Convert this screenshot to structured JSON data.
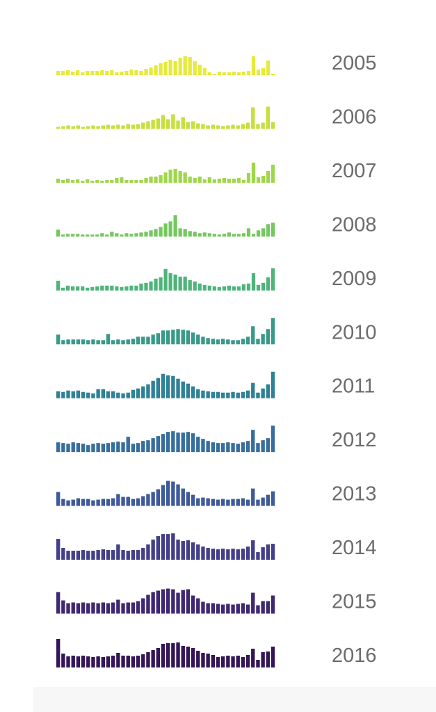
{
  "colors": {
    "background": "#ffffff",
    "label": "#6b6b6b",
    "palette": "viridis (yellow-green for 2005 through dark purple for 2016)"
  },
  "chart_data": {
    "type": "bar",
    "layout": "small-multiples",
    "title": "",
    "xlabel": "",
    "ylabel": "",
    "grid": false,
    "legend": "none",
    "rows_per_series": "one row of bars per year, year label at right",
    "series": [
      {
        "name": "2005",
        "color": "#e6ea3a",
        "values": [
          6,
          6,
          7,
          5,
          7,
          4,
          6,
          6,
          6,
          7,
          6,
          7,
          4,
          5,
          6,
          8,
          7,
          6,
          9,
          11,
          14,
          17,
          19,
          22,
          20,
          25,
          27,
          26,
          20,
          15,
          10,
          4,
          2,
          5,
          4,
          4,
          5,
          4,
          5,
          6,
          27,
          8,
          10,
          21,
          2
        ]
      },
      {
        "name": "2006",
        "color": "#c6e03a",
        "values": [
          3,
          4,
          5,
          4,
          5,
          3,
          4,
          5,
          4,
          5,
          6,
          5,
          6,
          5,
          7,
          6,
          7,
          9,
          11,
          13,
          15,
          20,
          14,
          21,
          12,
          17,
          10,
          11,
          8,
          7,
          5,
          6,
          5,
          4,
          5,
          6,
          5,
          7,
          9,
          31,
          7,
          9,
          32,
          10
        ]
      },
      {
        "name": "2007",
        "color": "#9fd74b",
        "values": [
          6,
          4,
          6,
          4,
          5,
          3,
          5,
          3,
          4,
          3,
          4,
          4,
          7,
          8,
          4,
          4,
          4,
          4,
          7,
          9,
          9,
          11,
          15,
          19,
          20,
          17,
          15,
          9,
          7,
          9,
          5,
          8,
          5,
          6,
          7,
          6,
          6,
          7,
          4,
          14,
          29,
          8,
          10,
          17,
          26
        ]
      },
      {
        "name": "2008",
        "color": "#73c85e",
        "values": [
          10,
          3,
          4,
          4,
          4,
          3,
          3,
          3,
          3,
          5,
          3,
          7,
          5,
          3,
          5,
          4,
          5,
          6,
          7,
          9,
          11,
          14,
          19,
          22,
          31,
          12,
          11,
          8,
          7,
          5,
          6,
          5,
          4,
          3,
          4,
          6,
          4,
          4,
          5,
          12,
          4,
          9,
          12,
          18,
          20
        ]
      },
      {
        "name": "2009",
        "color": "#4fb47a",
        "values": [
          14,
          4,
          7,
          6,
          6,
          6,
          4,
          5,
          6,
          7,
          7,
          7,
          6,
          5,
          6,
          7,
          7,
          10,
          11,
          13,
          17,
          19,
          31,
          25,
          23,
          20,
          20,
          15,
          13,
          10,
          8,
          7,
          6,
          5,
          6,
          7,
          6,
          6,
          9,
          10,
          25,
          8,
          11,
          19,
          32
        ]
      },
      {
        "name": "2010",
        "color": "#389a88",
        "values": [
          14,
          6,
          7,
          7,
          7,
          7,
          6,
          7,
          6,
          6,
          15,
          6,
          7,
          6,
          7,
          8,
          11,
          11,
          11,
          14,
          16,
          20,
          20,
          21,
          22,
          21,
          20,
          17,
          14,
          11,
          9,
          8,
          7,
          8,
          7,
          6,
          6,
          8,
          11,
          26,
          8,
          15,
          22,
          38
        ]
      },
      {
        "name": "2011",
        "color": "#2e8196",
        "values": [
          10,
          9,
          11,
          10,
          11,
          9,
          8,
          7,
          13,
          13,
          10,
          10,
          8,
          7,
          8,
          12,
          14,
          17,
          20,
          25,
          29,
          35,
          33,
          32,
          28,
          24,
          21,
          17,
          13,
          11,
          10,
          9,
          9,
          8,
          8,
          9,
          8,
          9,
          11,
          22,
          8,
          14,
          20,
          38
        ]
      },
      {
        "name": "2012",
        "color": "#376e9e",
        "values": [
          14,
          13,
          12,
          14,
          13,
          12,
          10,
          12,
          13,
          12,
          13,
          14,
          15,
          14,
          22,
          12,
          13,
          16,
          17,
          20,
          23,
          26,
          29,
          30,
          28,
          28,
          29,
          27,
          22,
          19,
          16,
          14,
          13,
          13,
          14,
          13,
          12,
          14,
          16,
          32,
          13,
          17,
          20,
          38
        ]
      },
      {
        "name": "2013",
        "color": "#3f5a9c",
        "values": [
          20,
          10,
          8,
          9,
          11,
          10,
          10,
          8,
          9,
          10,
          10,
          11,
          17,
          13,
          13,
          10,
          11,
          14,
          17,
          20,
          24,
          30,
          36,
          35,
          31,
          25,
          20,
          16,
          11,
          12,
          11,
          10,
          9,
          10,
          9,
          10,
          10,
          11,
          9,
          25,
          9,
          12,
          16,
          21
        ]
      },
      {
        "name": "2014",
        "color": "#433f8a",
        "values": [
          30,
          17,
          13,
          13,
          13,
          14,
          13,
          13,
          14,
          15,
          14,
          14,
          22,
          14,
          13,
          14,
          14,
          17,
          22,
          29,
          34,
          37,
          37,
          38,
          29,
          27,
          28,
          25,
          22,
          19,
          17,
          16,
          15,
          16,
          15,
          16,
          15,
          16,
          19,
          28,
          11,
          18,
          22,
          23
        ]
      },
      {
        "name": "2015",
        "color": "#3f2873",
        "values": [
          31,
          19,
          15,
          16,
          15,
          16,
          15,
          16,
          15,
          16,
          15,
          16,
          20,
          15,
          16,
          16,
          18,
          22,
          27,
          31,
          33,
          35,
          36,
          35,
          30,
          34,
          35,
          26,
          22,
          17,
          15,
          15,
          14,
          13,
          14,
          13,
          14,
          15,
          13,
          30,
          12,
          18,
          18,
          26
        ]
      },
      {
        "name": "2016",
        "color": "#341658",
        "values": [
          41,
          20,
          16,
          17,
          16,
          17,
          16,
          15,
          16,
          15,
          16,
          17,
          21,
          17,
          17,
          16,
          17,
          19,
          22,
          25,
          28,
          34,
          35,
          35,
          36,
          31,
          30,
          28,
          24,
          21,
          20,
          18,
          15,
          16,
          17,
          16,
          17,
          15,
          18,
          27,
          11,
          22,
          23,
          30
        ]
      }
    ]
  }
}
